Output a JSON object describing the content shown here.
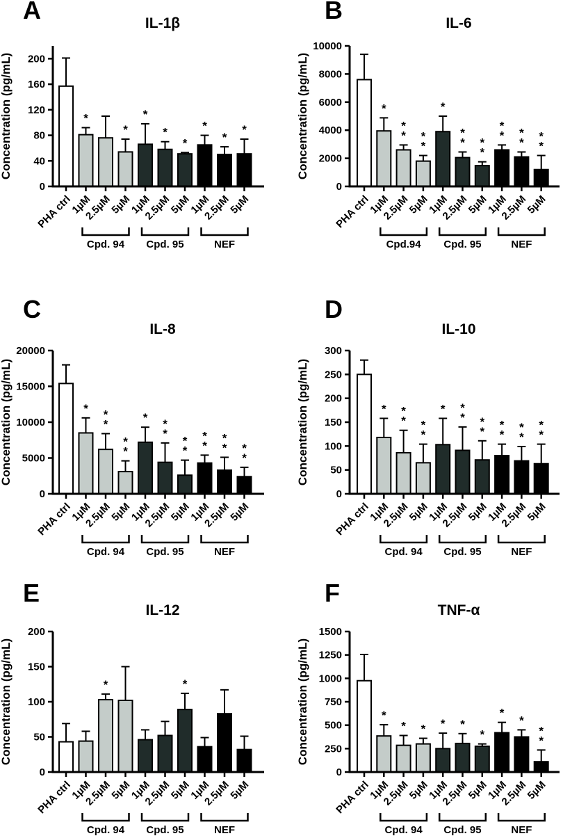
{
  "figure": {
    "background": "#ffffff",
    "text_color": "#000000",
    "axis_color": "#000000"
  },
  "bar_colors": {
    "control": "#ffffff",
    "cpd94": "#c4ccc9",
    "cpd95": "#202c2a",
    "nef": "#000000"
  },
  "color_groups": [
    "control",
    "cpd94",
    "cpd94",
    "cpd94",
    "cpd95",
    "cpd95",
    "cpd95",
    "nef",
    "nef",
    "nef"
  ],
  "categories": [
    "PHA ctrl",
    "1µM",
    "2.5µM",
    "5µM",
    "1µM",
    "2.5µM",
    "5µM",
    "1µM",
    "2.5µM",
    "5µM"
  ],
  "chart_data": [
    {
      "type": "bar",
      "panel": "A",
      "title": "IL-1β",
      "ylabel": "Concentration (pg/mL)",
      "ylim": [
        0,
        220
      ],
      "yticks": [
        0,
        40,
        80,
        120,
        160,
        200
      ],
      "categories": [
        "PHA ctrl",
        "1µM",
        "2.5µM",
        "5µM",
        "1µM",
        "2.5µM",
        "5µM",
        "1µM",
        "2.5µM",
        "5µM"
      ],
      "values": [
        157,
        81,
        76,
        54,
        66,
        58,
        51,
        65,
        50,
        51
      ],
      "error_top": [
        201,
        92,
        110,
        74,
        98,
        70,
        53,
        80,
        62,
        74
      ],
      "significance": [
        "",
        "*",
        "",
        "*",
        "*",
        "*",
        "*",
        "*",
        "*",
        "*"
      ],
      "groups": [
        {
          "label": "Cpd. 94",
          "from": 1,
          "to": 3
        },
        {
          "label": "Cpd. 95",
          "from": 4,
          "to": 6
        },
        {
          "label": "NEF",
          "from": 7,
          "to": 9
        }
      ]
    },
    {
      "type": "bar",
      "panel": "B",
      "title": "IL-6",
      "ylabel": "Concentration (pg/mL)",
      "ylim": [
        0,
        10000
      ],
      "yticks": [
        0,
        2000,
        4000,
        6000,
        8000,
        10000
      ],
      "categories": [
        "PHA ctrl",
        "1µM",
        "2.5µM",
        "5µM",
        "1µM",
        "2.5µM",
        "5µM",
        "1µM",
        "2.5µM",
        "5µM"
      ],
      "values": [
        7600,
        3950,
        2600,
        1800,
        3900,
        2050,
        1480,
        2600,
        2100,
        1200
      ],
      "error_top": [
        9400,
        4880,
        2950,
        2200,
        5000,
        2450,
        1750,
        2950,
        2450,
        2200
      ],
      "significance": [
        "",
        "*",
        "**",
        "**",
        "*",
        "**",
        "**",
        "**",
        "**",
        "**"
      ],
      "groups": [
        {
          "label": "Cpd.94",
          "from": 1,
          "to": 3
        },
        {
          "label": "Cpd. 95",
          "from": 4,
          "to": 6
        },
        {
          "label": "NEF",
          "from": 7,
          "to": 9
        }
      ]
    },
    {
      "type": "bar",
      "panel": "C",
      "title": "IL-8",
      "ylabel": "Concentration (pg/mL)",
      "ylim": [
        0,
        20000
      ],
      "yticks": [
        0,
        5000,
        10000,
        15000,
        20000
      ],
      "categories": [
        "PHA ctrl",
        "1µM",
        "2.5µM",
        "5µM",
        "1µM",
        "2.5µM",
        "5µM",
        "1µM",
        "2.5µM",
        "5µM"
      ],
      "values": [
        15400,
        8500,
        6200,
        3100,
        7200,
        4400,
        2600,
        4300,
        3300,
        2400
      ],
      "error_top": [
        18000,
        10600,
        8400,
        4600,
        9300,
        7100,
        4700,
        5400,
        5100,
        3700
      ],
      "significance": [
        "",
        "*",
        "**",
        "**",
        "*",
        "**",
        "**",
        "**",
        "**",
        "**"
      ],
      "groups": [
        {
          "label": "Cpd. 94",
          "from": 1,
          "to": 3
        },
        {
          "label": "Cpd. 95",
          "from": 4,
          "to": 6
        },
        {
          "label": "NEF",
          "from": 7,
          "to": 9
        }
      ]
    },
    {
      "type": "bar",
      "panel": "D",
      "title": "IL-10",
      "ylabel": "Concentration (pg/mL)",
      "ylim": [
        0,
        300
      ],
      "yticks": [
        0,
        50,
        100,
        150,
        200,
        250,
        300
      ],
      "categories": [
        "PHA ctrl",
        "1µM",
        "2.5µM",
        "5µM",
        "1µM",
        "2.5µM",
        "5µM",
        "1µM",
        "2.5µM",
        "5µM"
      ],
      "values": [
        250,
        118,
        86,
        65,
        103,
        91,
        71,
        80,
        69,
        63
      ],
      "error_top": [
        280,
        158,
        133,
        104,
        158,
        140,
        111,
        104,
        99,
        104
      ],
      "significance": [
        "",
        "*",
        "**",
        "**",
        "*",
        "**",
        "**",
        "**",
        "**",
        "**"
      ],
      "groups": [
        {
          "label": "Cpd. 94",
          "from": 1,
          "to": 3
        },
        {
          "label": "Cpd. 95",
          "from": 4,
          "to": 6
        },
        {
          "label": "NEF",
          "from": 7,
          "to": 9
        }
      ]
    },
    {
      "type": "bar",
      "panel": "E",
      "title": "IL-12",
      "ylabel": "Concentration (pg/mL)",
      "ylim": [
        0,
        200
      ],
      "yticks": [
        0,
        50,
        100,
        150,
        200
      ],
      "categories": [
        "PHA ctrl",
        "1µM",
        "2.5µM",
        "5µM",
        "1µM",
        "2.5µM",
        "5µM",
        "1µM",
        "2.5µM",
        "5µM"
      ],
      "values": [
        43,
        44,
        103,
        102,
        46,
        52,
        89,
        36,
        83,
        32
      ],
      "error_top": [
        69,
        58,
        111,
        150,
        60,
        72,
        112,
        49,
        117,
        51
      ],
      "significance": [
        "",
        "",
        "*",
        "",
        "",
        "",
        "*",
        "",
        "",
        ""
      ],
      "groups": [
        {
          "label": "Cpd. 94",
          "from": 1,
          "to": 3
        },
        {
          "label": "Cpd. 95",
          "from": 4,
          "to": 6
        },
        {
          "label": "NEF",
          "from": 7,
          "to": 9
        }
      ]
    },
    {
      "type": "bar",
      "panel": "F",
      "title": "TNF-α",
      "ylabel": "Concentration (pg/mL)",
      "ylim": [
        0,
        1500
      ],
      "yticks": [
        0,
        250,
        500,
        750,
        1000,
        1250,
        1500
      ],
      "categories": [
        "PHA ctrl",
        "1µM",
        "2.5µM",
        "5µM",
        "1µM",
        "2.5µM",
        "5µM",
        "1µM",
        "2.5µM",
        "5µM"
      ],
      "values": [
        975,
        385,
        285,
        300,
        250,
        305,
        275,
        420,
        375,
        110
      ],
      "error_top": [
        1255,
        505,
        390,
        360,
        415,
        410,
        300,
        530,
        450,
        235
      ],
      "significance": [
        "",
        "*",
        "*",
        "*",
        "*",
        "*",
        "*",
        "*",
        "*",
        "**"
      ],
      "groups": [
        {
          "label": "Cpd. 94",
          "from": 1,
          "to": 3
        },
        {
          "label": "Cpd. 95",
          "from": 4,
          "to": 6
        },
        {
          "label": "NEF",
          "from": 7,
          "to": 9
        }
      ]
    }
  ]
}
